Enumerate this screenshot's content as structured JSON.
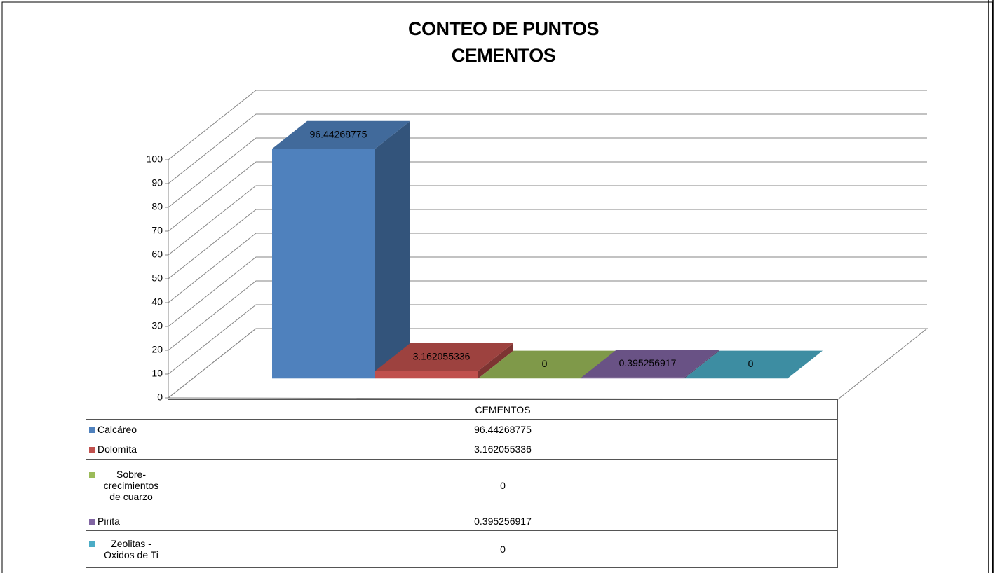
{
  "chart_data": {
    "type": "bar3d",
    "title": "CONTEO DE PUNTOS\nCEMENTOS",
    "categories": [
      "CEMENTOS"
    ],
    "series": [
      {
        "name": "Calcáreo",
        "color": "#4f81bd",
        "values": [
          96.44268775
        ]
      },
      {
        "name": "Dolomíta",
        "color": "#c0504d",
        "values": [
          3.162055336
        ]
      },
      {
        "name": "Sobre-crecimientos de cuarzo",
        "color": "#9bbb59",
        "values": [
          0
        ]
      },
      {
        "name": "Pirita",
        "color": "#8064a2",
        "values": [
          0.395256917
        ]
      },
      {
        "name": "Zeolitas - Oxidos de Ti",
        "color": "#4bacc6",
        "values": [
          0
        ]
      }
    ],
    "ylim": [
      0,
      100
    ],
    "yticks": [
      0,
      10,
      20,
      30,
      40,
      50,
      60,
      70,
      80,
      90,
      100
    ],
    "grid": true,
    "legend": "table"
  }
}
